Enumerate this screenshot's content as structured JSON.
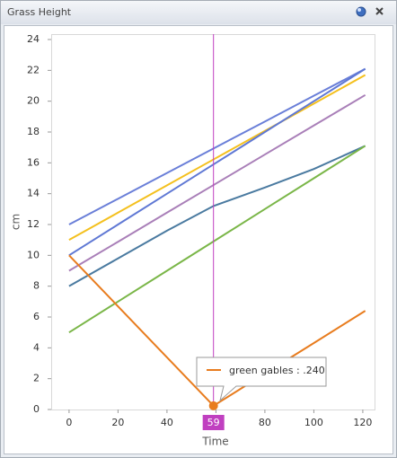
{
  "window_title": "Grass Height",
  "chart_data": {
    "type": "line",
    "x_label": "Time",
    "y_label": "cm",
    "x": [
      0,
      20,
      40,
      59,
      80,
      100,
      121
    ],
    "series": [
      {
        "color": "#6a7fd8",
        "values": [
          12,
          13.67,
          15.34,
          16.93,
          18.68,
          20.35,
          22.1
        ]
      },
      {
        "color": "#f4c01e",
        "values": [
          11,
          12.77,
          14.54,
          16.22,
          18.07,
          19.84,
          21.7
        ]
      },
      {
        "color": "#5f78d4",
        "values": [
          10,
          12,
          14,
          15.9,
          18,
          20,
          22.1
        ]
      },
      {
        "color": "#a97fb8",
        "values": [
          9,
          10.88,
          12.77,
          14.56,
          16.54,
          18.42,
          20.4
        ]
      },
      {
        "color": "#4a7aa0",
        "values": [
          8,
          9.8,
          11.6,
          13.2,
          14.4,
          15.6,
          17.1
        ]
      },
      {
        "color": "#7ab648",
        "values": [
          5,
          7,
          9,
          10.9,
          13,
          15,
          17.1
        ]
      },
      {
        "name": "green gables",
        "color": "#e87c1e",
        "values": [
          10,
          6.69,
          3.38,
          0.24,
          2.33,
          4.31,
          6.4
        ]
      }
    ],
    "xlim": [
      -7.3,
      124.8
    ],
    "xticks": [
      0,
      20,
      40,
      60,
      80,
      100,
      120
    ],
    "ylim": [
      0,
      24.35
    ],
    "yticks": [
      0,
      2,
      4,
      6,
      8,
      10,
      12,
      14,
      16,
      18,
      20,
      22,
      24
    ],
    "crosshair_x": 59,
    "crosshair_color": "#c040c0",
    "tooltip": "green gables : .240"
  }
}
